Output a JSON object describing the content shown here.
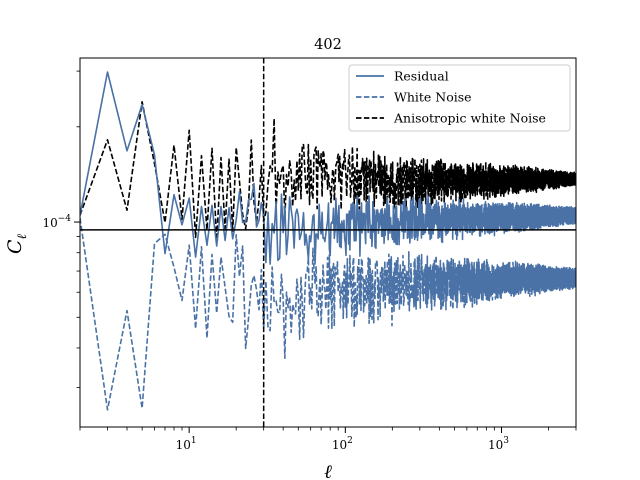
{
  "chart_data": {
    "type": "line",
    "title": "402",
    "xlabel": "ℓ",
    "ylabel": "C",
    "ylabel_sub": "ℓ",
    "xscale": "log",
    "yscale": "log",
    "xlim": [
      2,
      3000
    ],
    "ylim": [
      2.25e-05,
      0.00033
    ],
    "x_tick_labels": [
      {
        "value": 10,
        "base": "10",
        "exp": "1"
      },
      {
        "value": 100,
        "base": "10",
        "exp": "2"
      },
      {
        "value": 1000,
        "base": "10",
        "exp": "3"
      }
    ],
    "y_tick_labels": [
      {
        "value": 0.0001,
        "base": "10",
        "exp": "−4"
      }
    ],
    "vline": {
      "x": 30,
      "color": "#000000",
      "style": "dashed"
    },
    "hline": {
      "y": 9.45e-05,
      "color": "#000000",
      "style": "solid"
    },
    "legend": {
      "placement": "top-right",
      "entries": [
        {
          "label": "Residual",
          "color": "#4a72a6",
          "style": "solid"
        },
        {
          "label": "White Noise",
          "color": "#4a72a6",
          "style": "dashed"
        },
        {
          "label": "Anisotropic white Noise",
          "color": "#000000",
          "style": "dashed"
        }
      ]
    },
    "series": [
      {
        "name": "Residual",
        "color": "#4a72a6",
        "style": "solid",
        "x": [
          2,
          3,
          4,
          5,
          6,
          7,
          8,
          9,
          10,
          11,
          12,
          13,
          14,
          15,
          16,
          17,
          18,
          19,
          20,
          22,
          25,
          30,
          40,
          60,
          100,
          200,
          500,
          1000,
          3000
        ],
        "y": [
          0.000105,
          0.000298,
          0.000168,
          0.000235,
          0.000163,
          7.95e-05,
          0.000122,
          9.8e-05,
          0.000119,
          7.75e-05,
          0.000112,
          8.45e-05,
          0.000113,
          8.4e-05,
          0.000112,
          8.75e-05,
          0.000111,
          8.85e-05,
          0.00011,
          9.05e-05,
          0.000109,
          9.2e-05,
          0.000104,
          9.62e-05,
          9.88e-05,
          0.000101,
          0.000103,
          0.000104,
          0.000105
        ],
        "mean": 0.0001045,
        "noise_start": 20,
        "amp_decay": [
          0.22,
          0.045
        ]
      },
      {
        "name": "White Noise",
        "color": "#4a72a6",
        "style": "dashed",
        "x": [
          2,
          3,
          4,
          5,
          6,
          7,
          8,
          9,
          10,
          11,
          12,
          13,
          14,
          15,
          16,
          18,
          20,
          25,
          30,
          40,
          60,
          100,
          200,
          500,
          1000,
          3000
        ],
        "y": [
          0.000103,
          2.55e-05,
          5.25e-05,
          2.58e-05,
          8.55e-05,
          9.15e-05,
          7.2e-05,
          5.65e-05,
          8.45e-05,
          4.6e-05,
          8.35e-05,
          4.3e-05,
          7.9e-05,
          5.15e-05,
          7.75e-05,
          5.15e-05,
          7.1e-05,
          5.25e-05,
          6.7e-05,
          4.95e-05,
          6.45e-05,
          6.25e-05,
          6.4e-05,
          6.5e-05,
          6.6e-05,
          6.65e-05
        ],
        "mean": 6.65e-05,
        "noise_start": 18,
        "amp_decay": [
          0.3,
          0.05
        ]
      },
      {
        "name": "Anisotropic white Noise",
        "color": "#000000",
        "style": "dashed",
        "x": [
          2,
          3,
          4,
          5,
          6,
          7,
          8,
          9,
          10,
          11,
          12,
          13,
          14,
          15,
          16,
          17,
          18,
          19,
          20,
          22,
          25,
          30,
          35,
          40,
          60,
          100,
          200,
          500,
          1000,
          3000
        ],
        "y": [
          0.000105,
          0.000182,
          0.000109,
          0.00024,
          0.000153,
          9.95e-05,
          0.000175,
          0.000102,
          0.000195,
          8.95e-05,
          0.000162,
          9.45e-05,
          0.000171,
          8.75e-05,
          0.00016,
          9.55e-05,
          0.000158,
          9.35e-05,
          0.000172,
          0.000105,
          0.000155,
          0.000115,
          0.000162,
          0.000122,
          0.000142,
          0.000139,
          0.000136,
          0.000136,
          0.000136,
          0.000137
        ],
        "mean": 0.000137,
        "noise_start": 22,
        "amp_decay": [
          0.26,
          0.035
        ]
      }
    ]
  }
}
